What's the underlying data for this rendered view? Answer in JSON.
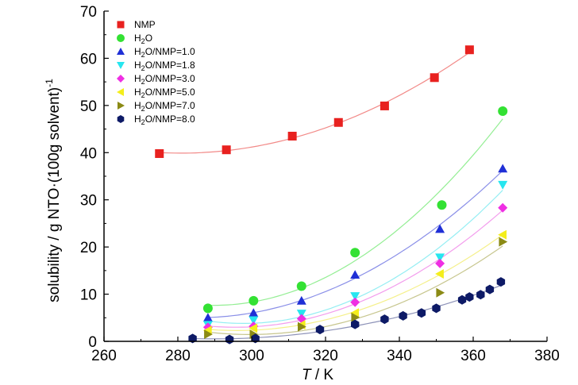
{
  "chart_data": {
    "type": "scatter",
    "xlabel_var": "T",
    "xlabel_unit": " / K",
    "ylabel": "solubility / g NTO·(100g solvent)",
    "ylabel_sup": "-1",
    "xlim": [
      260,
      380
    ],
    "ylim": [
      0,
      70
    ],
    "xticks": [
      "260",
      "280",
      "300",
      "320",
      "340",
      "360",
      "380"
    ],
    "yticks": [
      "0",
      "10",
      "20",
      "30",
      "40",
      "50",
      "60",
      "70"
    ],
    "grid": false,
    "legend_position": "top-left",
    "series": [
      {
        "name": "NMP",
        "legend": {
          "pre": "NMP",
          "sub": "",
          "post": ""
        },
        "color": "#e8211f",
        "marker": "square",
        "fit_color": "#f28a88",
        "x": [
          275,
          293.15,
          311,
          323.5,
          336,
          349.5,
          359
        ],
        "y": [
          39.8,
          40.6,
          43.5,
          46.4,
          49.9,
          55.9,
          61.8
        ]
      },
      {
        "name": "H2O",
        "legend": {
          "pre": "H",
          "sub": "2",
          "post": "O"
        },
        "color": "#33e133",
        "marker": "circle",
        "fit_color": "#94ee94",
        "x": [
          288.15,
          300.5,
          313.5,
          328,
          351.5,
          368
        ],
        "y": [
          7,
          8.6,
          11.7,
          18.8,
          28.9,
          48.8
        ]
      },
      {
        "name": "H2O/NMP=1.0",
        "legend": {
          "pre": "H",
          "sub": "2",
          "post": "O/NMP=1.0"
        },
        "color": "#1f2fd6",
        "marker": "triangle-up",
        "fit_color": "#8a8fe8",
        "x": [
          288.15,
          300.5,
          313.5,
          328,
          351,
          368
        ],
        "y": [
          5,
          6,
          8.6,
          14.1,
          23.8,
          36.6
        ]
      },
      {
        "name": "H2O/NMP=1.8",
        "legend": {
          "pre": "H",
          "sub": "2",
          "post": "O/NMP=1.8"
        },
        "color": "#27e6ef",
        "marker": "triangle-down",
        "fit_color": "#94eef3",
        "x": [
          288.15,
          300.5,
          313.5,
          328,
          351,
          368
        ],
        "y": [
          3.5,
          4.5,
          5.9,
          9.6,
          17.8,
          33.2
        ]
      },
      {
        "name": "H2O/NMP=3.0",
        "legend": {
          "pre": "H",
          "sub": "2",
          "post": "O/NMP=3.0"
        },
        "color": "#ef2fe3",
        "marker": "diamond",
        "fit_color": "#f39ded",
        "x": [
          288.15,
          300.5,
          313.5,
          328,
          351,
          368
        ],
        "y": [
          3,
          3.2,
          4.8,
          8.3,
          16.5,
          28.3
        ]
      },
      {
        "name": "H2O/NMP=5.0",
        "legend": {
          "pre": "H",
          "sub": "2",
          "post": "O/NMP=5.0"
        },
        "color": "#f4ee1b",
        "marker": "triangle-left",
        "fit_color": "#f5f08a",
        "x": [
          288.15,
          300.5,
          313.5,
          328,
          351,
          368
        ],
        "y": [
          2.3,
          2.8,
          3.5,
          6,
          14.3,
          22.6
        ]
      },
      {
        "name": "H2O/NMP=7.0",
        "legend": {
          "pre": "H",
          "sub": "2",
          "post": "O/NMP=7.0"
        },
        "color": "#8b8a15",
        "marker": "triangle-right",
        "fit_color": "#c7c68e",
        "x": [
          288.15,
          300.5,
          313.5,
          328,
          351,
          368
        ],
        "y": [
          1.5,
          1.5,
          3.1,
          5.1,
          10.3,
          21.1
        ]
      },
      {
        "name": "H2O/NMP=8.0",
        "legend": {
          "pre": "H",
          "sub": "2",
          "post": "O/NMP=8.0"
        },
        "color": "#0d1a66",
        "marker": "hexagon",
        "fit_color": "#8d92b8",
        "x": [
          284,
          294,
          301,
          318.5,
          328,
          336,
          341,
          346,
          350,
          357,
          359,
          362,
          364.5,
          367.5
        ],
        "y": [
          0.6,
          0.4,
          0.6,
          2.5,
          3.6,
          4.7,
          5.4,
          6,
          7,
          8.8,
          9.4,
          9.9,
          11,
          12.6
        ]
      }
    ]
  }
}
